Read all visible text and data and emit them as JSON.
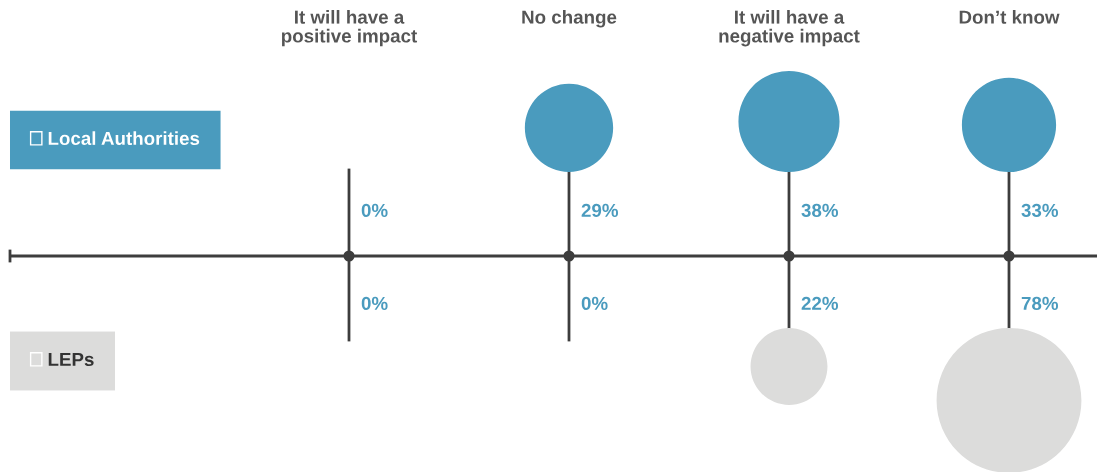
{
  "chart_data": {
    "type": "other",
    "categories": [
      "It will have a\npositive impact",
      "No change",
      "It will have a\nnegative impact",
      "Don’t know"
    ],
    "series": [
      {
        "name": "Local Authorities",
        "color": "#4a9bbe",
        "values": [
          0,
          29,
          38,
          33
        ],
        "value_labels": [
          "0%",
          "29%",
          "38%",
          "33%"
        ]
      },
      {
        "name": "LEPs",
        "color": "#dcdcdb",
        "values": [
          0,
          0,
          22,
          78
        ],
        "value_labels": [
          "0%",
          "0%",
          "22%",
          "78%"
        ]
      }
    ],
    "legend": "left"
  }
}
